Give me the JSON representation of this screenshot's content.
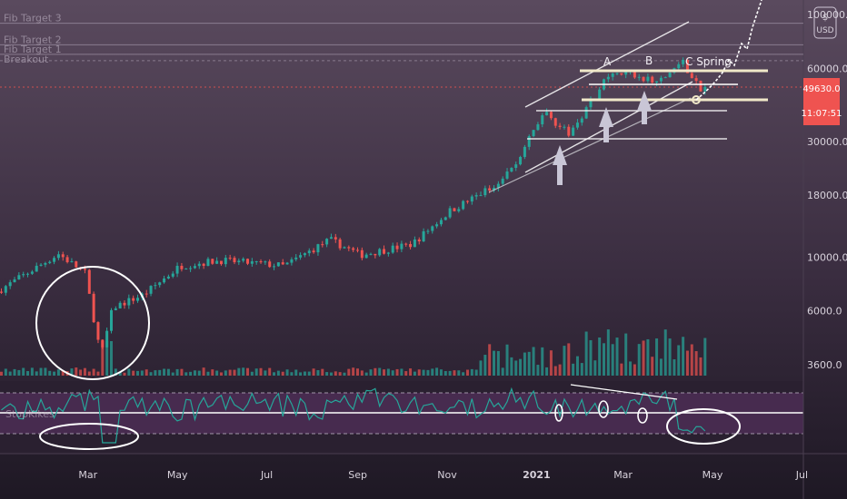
{
  "chart": {
    "currency_label": "USD",
    "current_price_label": "49630.0",
    "countdown_label": "11:07:51",
    "osc_label": "StopKikes",
    "fib_labels": [
      "Fib Target 3",
      "Fib Target 2",
      "Fib Target 1",
      "Breakout"
    ],
    "wave_labels": [
      "A",
      "B",
      "C Spring"
    ],
    "colors": {
      "background_top": "#55465a",
      "background_bottom": "#1c1722",
      "candle_up": "#26a69a",
      "candle_down": "#ef5350",
      "osc_line": "#26a69a",
      "osc_band": "#7b3f86",
      "price_tag": "#ef5350",
      "annotation": "#ffffff"
    }
  },
  "chart_data": {
    "type": "candlestick",
    "price_axis": {
      "scale": "log",
      "tick_labels": [
        "100000.0",
        "60000.0",
        "30000.0",
        "18000.0",
        "10000.0",
        "6000.0",
        "3600.0"
      ],
      "ticks": [
        100000,
        60000,
        30000,
        18000,
        10000,
        6000,
        3600
      ]
    },
    "time_axis": {
      "tick_labels": [
        "Mar",
        "May",
        "Jul",
        "Sep",
        "Nov",
        "2021",
        "Mar",
        "May",
        "Jul"
      ]
    },
    "last_price": 49630.0,
    "price_path": [
      {
        "date": "2020-01-01",
        "close": 7200
      },
      {
        "date": "2020-02-12",
        "close": 10300
      },
      {
        "date": "2020-03-01",
        "close": 8600
      },
      {
        "date": "2020-03-12",
        "close": 3900
      },
      {
        "date": "2020-03-20",
        "close": 6200
      },
      {
        "date": "2020-04-10",
        "close": 7000
      },
      {
        "date": "2020-05-05",
        "close": 9200
      },
      {
        "date": "2020-06-01",
        "close": 9700
      },
      {
        "date": "2020-07-15",
        "close": 9200
      },
      {
        "date": "2020-08-15",
        "close": 11800
      },
      {
        "date": "2020-09-05",
        "close": 10200
      },
      {
        "date": "2020-10-10",
        "close": 11300
      },
      {
        "date": "2020-11-05",
        "close": 15500
      },
      {
        "date": "2020-12-01",
        "close": 19000
      },
      {
        "date": "2020-12-20",
        "close": 24000
      },
      {
        "date": "2021-01-08",
        "close": 40000
      },
      {
        "date": "2021-01-25",
        "close": 32000
      },
      {
        "date": "2021-02-20",
        "close": 55000
      },
      {
        "date": "2021-03-10",
        "close": 57000
      },
      {
        "date": "2021-03-25",
        "close": 52000
      },
      {
        "date": "2021-04-13",
        "close": 63000
      },
      {
        "date": "2021-04-25",
        "close": 49630
      }
    ],
    "levels": [
      {
        "name": "Fib Target 3",
        "value": 92000
      },
      {
        "name": "Fib Target 2",
        "value": 75000
      },
      {
        "name": "Fib Target 1",
        "value": 68500
      },
      {
        "name": "Breakout",
        "value": 64500
      }
    ]
  }
}
